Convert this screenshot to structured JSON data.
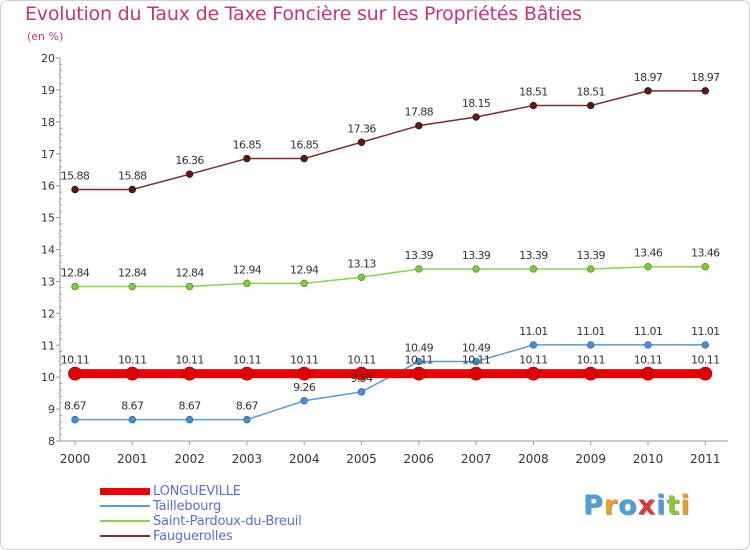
{
  "title": "Evolution du Taux de Taxe Foncière sur les Propriétés Bâties",
  "subtitle": "(en %)",
  "logo": {
    "text": "Proxiti",
    "colors": [
      "#4aa0d8",
      "#e8a020",
      "#4aa0d8",
      "#d23a3a",
      "#4aa0d8",
      "#8cc63e",
      "#e8a020"
    ]
  },
  "chart_data": {
    "type": "line",
    "title": "Evolution du Taux de Taxe Foncière sur les Propriétés Bâties",
    "ylabel": "(en %)",
    "xlabel": "",
    "x": [
      "2000",
      "2001",
      "2002",
      "2003",
      "2004",
      "2005",
      "2006",
      "2007",
      "2008",
      "2009",
      "2010",
      "2011"
    ],
    "ylim": [
      8,
      20
    ],
    "yticks": [
      8,
      9,
      10,
      11,
      12,
      13,
      14,
      15,
      16,
      17,
      18,
      19,
      20
    ],
    "grid": false,
    "legend_position": "bottom-left",
    "series": [
      {
        "name": "LONGUEVILLE",
        "color": "#ee0000",
        "values": [
          10.11,
          10.11,
          10.11,
          10.11,
          10.11,
          10.11,
          10.11,
          10.11,
          10.11,
          10.11,
          10.11,
          10.11
        ],
        "labels": [
          "10.11",
          "10.11",
          "10.11",
          "10.11",
          "10.11",
          "10.11",
          "10.11",
          "10.11",
          "10.11",
          "10.11",
          "10.11",
          "10.11"
        ]
      },
      {
        "name": "Taillebourg",
        "color": "#5b9bd5",
        "values": [
          8.67,
          8.67,
          8.67,
          8.67,
          9.26,
          9.54,
          10.49,
          10.49,
          11.01,
          11.01,
          11.01,
          11.01
        ],
        "labels": [
          "8.67",
          "8.67",
          "8.67",
          "8.67",
          "9.26",
          "9.54",
          "10.49",
          "10.49",
          "11.01",
          "11.01",
          "11.01",
          "11.01"
        ]
      },
      {
        "name": "Saint-Pardoux-du-Breuil",
        "color": "#8fd14f",
        "values": [
          12.84,
          12.84,
          12.84,
          12.94,
          12.94,
          13.13,
          13.39,
          13.39,
          13.39,
          13.39,
          13.46,
          13.46
        ],
        "labels": [
          "12.84",
          "12.84",
          "12.84",
          "12.94",
          "12.94",
          "13.13",
          "13.39",
          "13.39",
          "13.39",
          "13.39",
          "13.46",
          "13.46"
        ]
      },
      {
        "name": "Fauguerolles",
        "color": "#7a2e2e",
        "values": [
          15.88,
          15.88,
          16.36,
          16.85,
          16.85,
          17.36,
          17.88,
          18.15,
          18.51,
          18.51,
          18.97,
          18.97
        ],
        "labels": [
          "15.88",
          "15.88",
          "16.36",
          "16.85",
          "16.85",
          "17.36",
          "17.88",
          "18.15",
          "18.51",
          "18.51",
          "18.97",
          "18.97"
        ]
      }
    ]
  }
}
